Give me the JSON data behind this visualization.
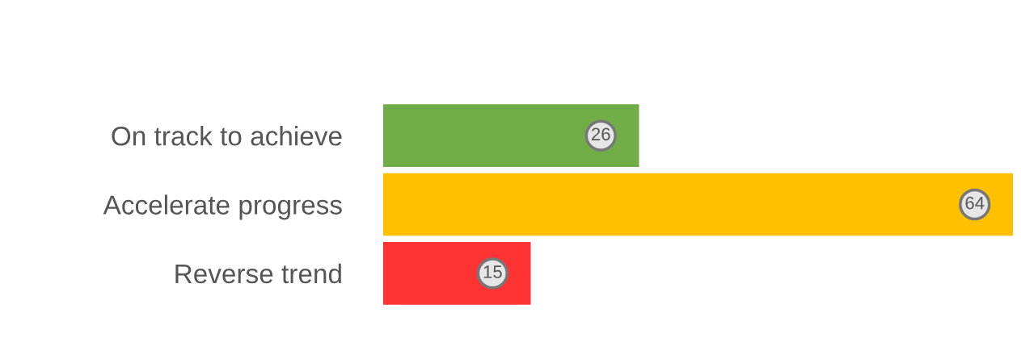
{
  "chart_data": {
    "type": "bar",
    "orientation": "horizontal",
    "categories": [
      "On track to achieve",
      "Accelerate progress",
      "Reverse trend"
    ],
    "values": [
      26,
      64,
      15
    ],
    "colors": [
      "#70ad47",
      "#ffc000",
      "#ff3333"
    ],
    "data_labels": true,
    "grid": false,
    "legend": false
  }
}
